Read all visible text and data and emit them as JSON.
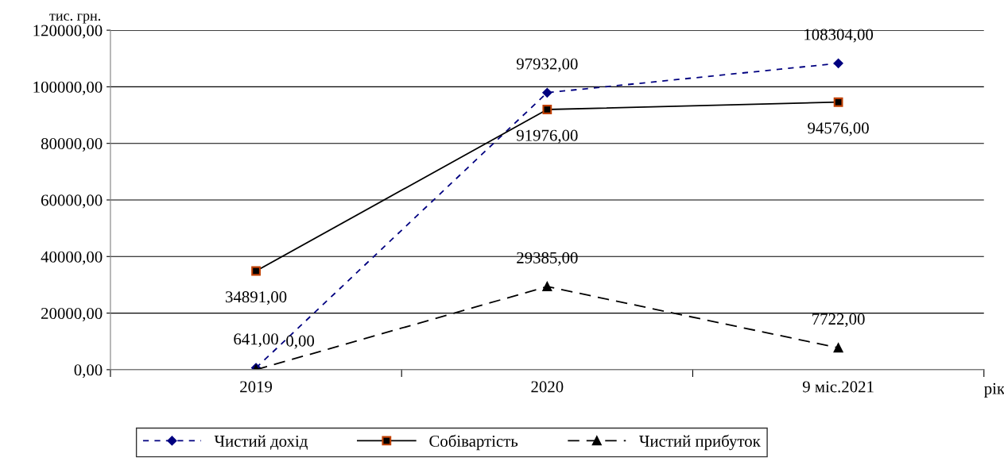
{
  "chart_data": {
    "type": "line",
    "ylabel": "тис. грн.",
    "xlabel": "рік",
    "categories": [
      "2019",
      "2020",
      "9 міс.2021"
    ],
    "series": [
      {
        "name": "Чистий дохід",
        "color": "#000080",
        "values": [
          641,
          97932,
          108304
        ],
        "marker": "diamond",
        "line_style": "dotted",
        "value_labels": [
          "641,00",
          "97932,00",
          "108304,00"
        ]
      },
      {
        "name": "Собівартість",
        "color": "#000000",
        "values": [
          34891,
          91976,
          94576
        ],
        "marker": "square",
        "line_style": "solid",
        "value_labels": [
          "34891,00",
          "91976,00",
          "94576,00"
        ]
      },
      {
        "name": "Чистий прибуток",
        "color": "#000000",
        "values": [
          0,
          29385,
          7722
        ],
        "marker": "triangle",
        "line_style": "dashed",
        "value_labels": [
          "0,00",
          "29385,00",
          "7722,00"
        ]
      }
    ],
    "ylim": [
      0,
      120000
    ],
    "yticks": [
      {
        "value": 0,
        "label": "0,00"
      },
      {
        "value": 20000,
        "label": "20000,00"
      },
      {
        "value": 40000,
        "label": "40000,00"
      },
      {
        "value": 60000,
        "label": "60000,00"
      },
      {
        "value": 80000,
        "label": "80000,00"
      },
      {
        "value": 100000,
        "label": "100000,00"
      },
      {
        "value": 120000,
        "label": "120000,00"
      }
    ],
    "grid": "y",
    "legend": "bottom"
  }
}
